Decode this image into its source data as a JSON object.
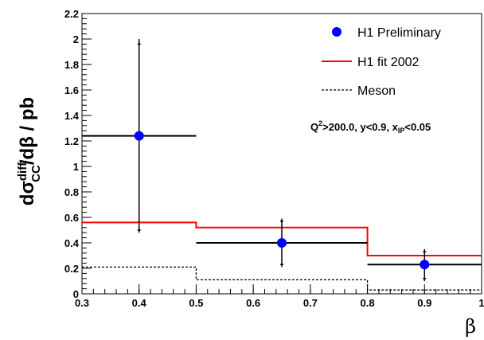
{
  "chart_data": {
    "type": "scatter",
    "xlabel": "β",
    "ylabel": {
      "prefix": "dσ",
      "sup": "diff",
      "sub": "CC",
      "suffix": "/dβ / pb"
    },
    "xlim": [
      0.3,
      1.0
    ],
    "ylim": [
      0.0,
      2.2
    ],
    "x_ticks": [
      "0.3",
      "0.4",
      "0.5",
      "0.6",
      "0.7",
      "0.8",
      "0.9",
      "1"
    ],
    "y_ticks": [
      "0",
      "0.2",
      "0.4",
      "0.6",
      "0.8",
      "1",
      "1.2",
      "1.4",
      "1.6",
      "1.8",
      "2",
      "2.2"
    ],
    "grid": false,
    "legend_position": "top-right",
    "series": [
      {
        "name": "H1 Preliminary",
        "kind": "points",
        "color": "#0000ff",
        "points": [
          {
            "x": 0.4,
            "y": 1.24,
            "xlow": 0.3,
            "xhigh": 0.5,
            "ylow": 0.5,
            "yhigh": 1.96,
            "ylow_tot": 0.48,
            "yhigh_tot": 2.0
          },
          {
            "x": 0.65,
            "y": 0.4,
            "xlow": 0.5,
            "xhigh": 0.8,
            "ylow": 0.23,
            "yhigh": 0.57,
            "ylow_tot": 0.21,
            "yhigh_tot": 0.59
          },
          {
            "x": 0.9,
            "y": 0.23,
            "xlow": 0.8,
            "xhigh": 1.0,
            "ylow": 0.12,
            "yhigh": 0.33,
            "ylow_tot": 0.1,
            "yhigh_tot": 0.35
          }
        ]
      },
      {
        "name": "H1 fit 2002",
        "kind": "step",
        "color": "#ff0000",
        "bins": [
          {
            "x0": 0.3,
            "x1": 0.5,
            "y": 0.56
          },
          {
            "x0": 0.5,
            "x1": 0.8,
            "y": 0.52
          },
          {
            "x0": 0.8,
            "x1": 1.0,
            "y": 0.3
          }
        ]
      },
      {
        "name": "Meson",
        "kind": "step-dashed",
        "color": "#000000",
        "bins": [
          {
            "x0": 0.3,
            "x1": 0.5,
            "y": 0.21
          },
          {
            "x0": 0.5,
            "x1": 0.8,
            "y": 0.11
          },
          {
            "x0": 0.8,
            "x1": 1.0,
            "y": 0.03
          }
        ]
      }
    ],
    "annotation": {
      "q2_a": "Q",
      "q2_sup": "2",
      "q2_b": ">200.0, y<0.9, x",
      "q2_sub": "IP",
      "q2_c": "<0.05"
    }
  }
}
